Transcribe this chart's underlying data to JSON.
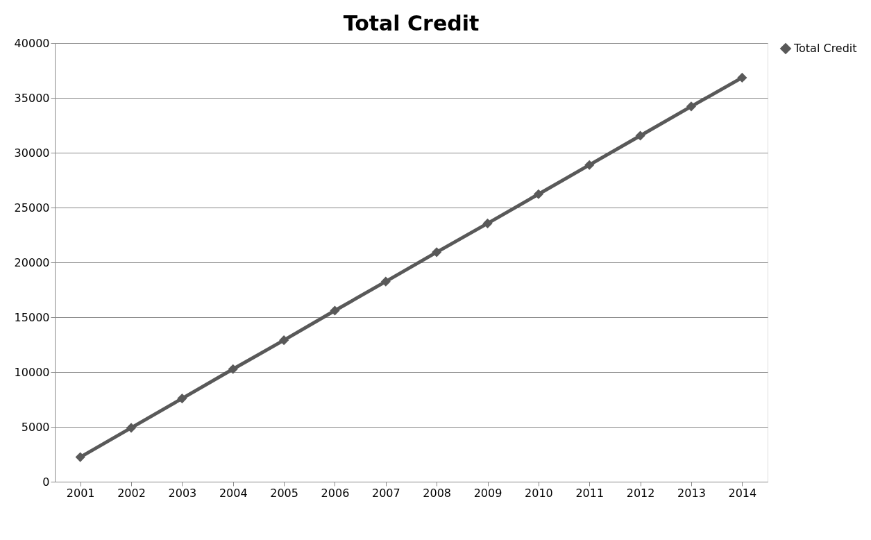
{
  "chart_data": {
    "type": "line",
    "title": "Total Credit",
    "categories": [
      "2001",
      "2002",
      "2003",
      "2004",
      "2005",
      "2006",
      "2007",
      "2008",
      "2009",
      "2010",
      "2011",
      "2012",
      "2013",
      "2014"
    ],
    "series": [
      {
        "name": "Total Credit",
        "color": "#595959",
        "values": [
          2240,
          4910,
          7590,
          10270,
          12900,
          15600,
          18250,
          20930,
          23550,
          26220,
          28880,
          31550,
          34220,
          36840
        ]
      }
    ],
    "ylim": [
      0,
      40000
    ],
    "yticks": [
      0,
      5000,
      10000,
      15000,
      20000,
      25000,
      30000,
      35000,
      40000
    ],
    "grid": "y",
    "legend": "right",
    "marker": "diamond",
    "line_style": "solid"
  }
}
